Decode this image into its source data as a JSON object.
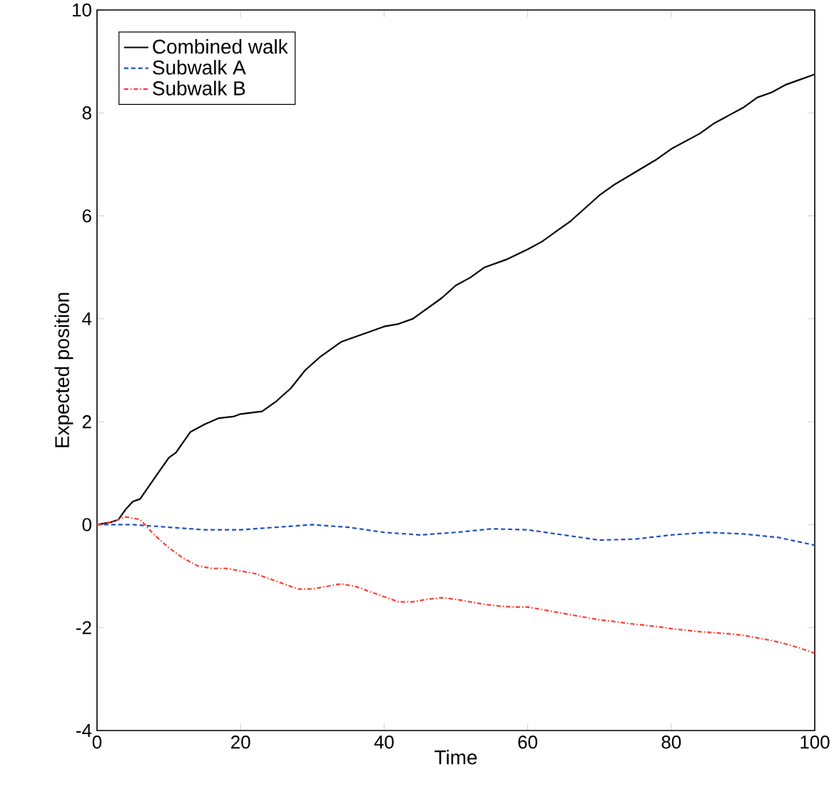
{
  "chart_data": {
    "type": "line",
    "xlabel": "Time",
    "ylabel": "Expected position",
    "xlim": [
      0,
      100
    ],
    "ylim": [
      -4,
      10
    ],
    "xticks": [
      0,
      20,
      40,
      60,
      80,
      100
    ],
    "yticks": [
      -4,
      -2,
      0,
      2,
      4,
      6,
      8,
      10
    ],
    "grid": false,
    "legend": "top left",
    "marker": "none",
    "series": [
      {
        "name": "Combined walk",
        "color": "#000000",
        "line_style": "solid",
        "x": [
          0,
          2,
          3,
          4,
          5,
          6,
          8,
          10,
          11,
          13,
          15,
          17,
          19,
          20,
          23,
          25,
          27,
          29,
          31,
          34,
          37,
          40,
          42,
          44,
          46,
          48,
          50,
          52,
          54,
          57,
          60,
          62,
          64,
          66,
          68,
          70,
          72,
          75,
          78,
          80,
          82,
          84,
          86,
          88,
          90,
          92,
          94,
          96,
          98,
          100
        ],
        "values": [
          0,
          0.05,
          0.1,
          0.3,
          0.45,
          0.5,
          0.9,
          1.3,
          1.4,
          1.8,
          1.95,
          2.07,
          2.1,
          2.15,
          2.2,
          2.4,
          2.65,
          3.0,
          3.25,
          3.55,
          3.7,
          3.85,
          3.9,
          4.0,
          4.2,
          4.4,
          4.65,
          4.8,
          5.0,
          5.15,
          5.35,
          5.5,
          5.7,
          5.9,
          6.15,
          6.4,
          6.6,
          6.85,
          7.1,
          7.3,
          7.45,
          7.6,
          7.8,
          7.95,
          8.1,
          8.3,
          8.4,
          8.55,
          8.65,
          8.75
        ]
      },
      {
        "name": "Subwalk A",
        "color": "#1f4fc0",
        "line_style": "dashed",
        "x": [
          0,
          5,
          10,
          15,
          20,
          25,
          30,
          35,
          40,
          45,
          50,
          55,
          60,
          65,
          70,
          75,
          80,
          85,
          90,
          95,
          100
        ],
        "values": [
          0,
          0,
          -0.05,
          -0.1,
          -0.1,
          -0.05,
          0.0,
          -0.05,
          -0.15,
          -0.2,
          -0.15,
          -0.08,
          -0.1,
          -0.2,
          -0.3,
          -0.28,
          -0.2,
          -0.15,
          -0.18,
          -0.25,
          -0.4
        ]
      },
      {
        "name": "Subwalk B",
        "color": "#ff3b2f",
        "line_style": "dashdot",
        "x": [
          0,
          2,
          4,
          6,
          8,
          10,
          12,
          14,
          16,
          18,
          20,
          22,
          24,
          26,
          28,
          30,
          32,
          34,
          36,
          38,
          40,
          42,
          44,
          46,
          48,
          50,
          52,
          54,
          56,
          58,
          60,
          62,
          64,
          66,
          68,
          70,
          72,
          74,
          76,
          78,
          80,
          82,
          84,
          86,
          88,
          90,
          92,
          94,
          96,
          98,
          100
        ],
        "values": [
          0,
          0.05,
          0.15,
          0.1,
          -0.2,
          -0.45,
          -0.65,
          -0.8,
          -0.85,
          -0.85,
          -0.9,
          -0.95,
          -1.05,
          -1.15,
          -1.25,
          -1.25,
          -1.2,
          -1.15,
          -1.2,
          -1.3,
          -1.4,
          -1.5,
          -1.5,
          -1.45,
          -1.42,
          -1.45,
          -1.5,
          -1.55,
          -1.58,
          -1.6,
          -1.6,
          -1.65,
          -1.7,
          -1.75,
          -1.8,
          -1.85,
          -1.88,
          -1.92,
          -1.95,
          -1.98,
          -2.02,
          -2.05,
          -2.08,
          -2.1,
          -2.12,
          -2.15,
          -2.2,
          -2.25,
          -2.32,
          -2.4,
          -2.5
        ]
      }
    ]
  }
}
